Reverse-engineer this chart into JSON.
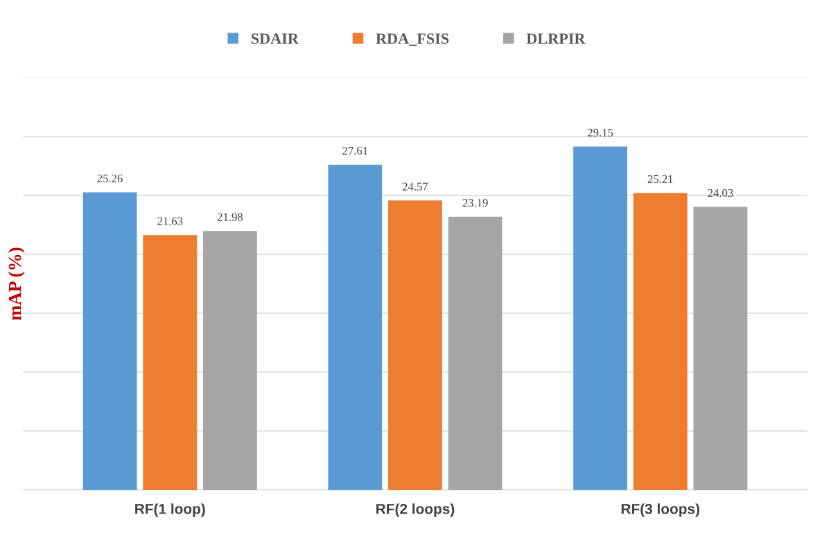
{
  "chart_data": {
    "type": "bar",
    "ylabel": "mAP (%)",
    "categories": [
      "RF(1 loop)",
      "RF(2 loops)",
      "RF(3 loops)"
    ],
    "series": [
      {
        "name": "SDAIR",
        "color": "#5b9bd5",
        "values": [
          25.26,
          27.61,
          29.15
        ]
      },
      {
        "name": "RDA_FSIS",
        "color": "#ed7d31",
        "values": [
          21.63,
          24.57,
          25.21
        ]
      },
      {
        "name": "DLRPIR",
        "color": "#a5a5a5",
        "values": [
          21.98,
          23.19,
          24.03
        ]
      }
    ],
    "ylim": [
      0,
      35
    ],
    "yticks": [
      {
        "value": 0,
        "label": null
      },
      {
        "value": 5,
        "label": null
      },
      {
        "value": 10,
        "label": null
      },
      {
        "value": 15,
        "label": null
      },
      {
        "value": 20,
        "label": null
      },
      {
        "value": 25,
        "label": null
      },
      {
        "value": 30,
        "label": null
      },
      {
        "value": 35,
        "label": null
      }
    ],
    "tick_labels": "x",
    "grid": "y",
    "legend": "top",
    "data_labels": true
  }
}
